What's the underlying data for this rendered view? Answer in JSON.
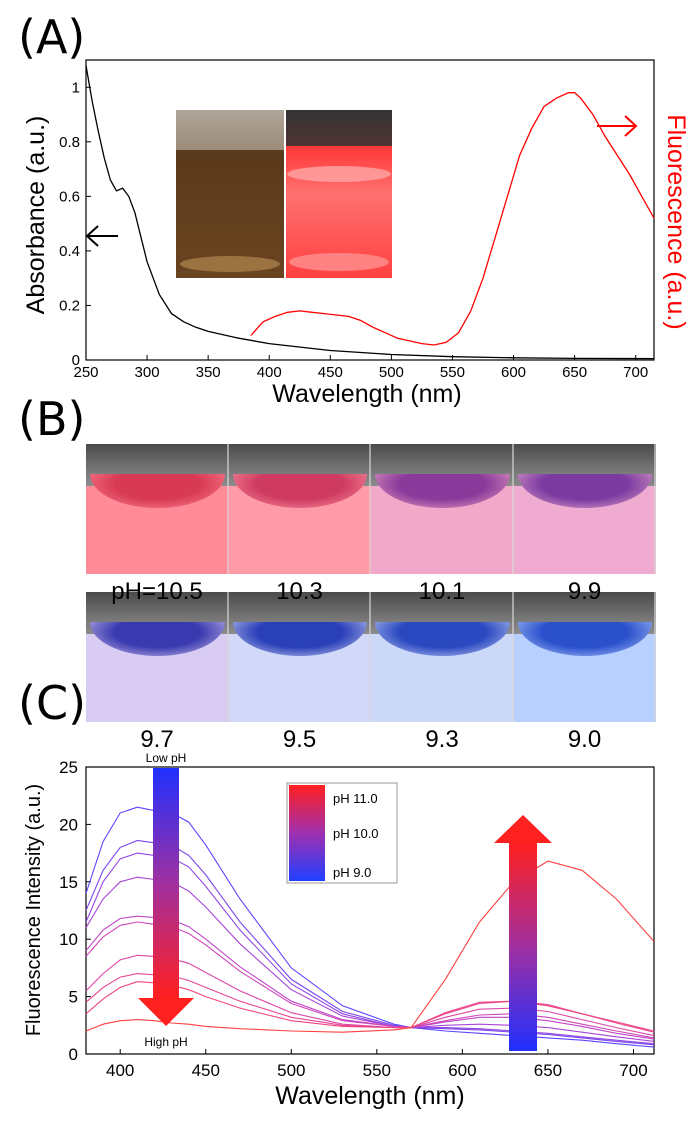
{
  "panel_labels": {
    "a": "(A)",
    "b": "(B)",
    "c": "(C)"
  },
  "colors": {
    "absorbance": "#000000",
    "fluorescence": "#ff0000",
    "high_ph": "#ff2020",
    "low_ph": "#2030ff"
  },
  "chart_data": [
    {
      "id": "A",
      "type": "line",
      "xlabel": "Wavelength (nm)",
      "ylabel": "Absorbance (a.u.)",
      "ylabel_right": "Fluorescence (a.u.)",
      "xlim": [
        250,
        715
      ],
      "ylim": [
        0,
        1.1
      ],
      "xticks": [
        250,
        300,
        350,
        400,
        450,
        500,
        550,
        600,
        650,
        700
      ],
      "yticks": [
        0,
        0.2,
        0.4,
        0.6,
        0.8,
        1
      ],
      "ytick_labels": [
        "0",
        "0.2",
        "0.4",
        "0.6",
        "0.8",
        "1"
      ],
      "series": [
        {
          "name": "Absorbance",
          "axis": "left",
          "x": [
            250,
            255,
            260,
            265,
            270,
            275,
            280,
            285,
            290,
            295,
            300,
            310,
            320,
            330,
            340,
            350,
            375,
            400,
            450,
            500,
            550,
            600,
            650,
            715
          ],
          "y": [
            1.08,
            0.95,
            0.84,
            0.74,
            0.66,
            0.62,
            0.63,
            0.6,
            0.54,
            0.45,
            0.36,
            0.24,
            0.17,
            0.14,
            0.12,
            0.105,
            0.08,
            0.06,
            0.035,
            0.02,
            0.012,
            0.008,
            0.006,
            0.005
          ]
        },
        {
          "name": "Fluorescence",
          "axis": "right",
          "x": [
            385,
            395,
            405,
            415,
            425,
            435,
            445,
            455,
            465,
            475,
            485,
            495,
            505,
            515,
            525,
            535,
            545,
            555,
            565,
            575,
            585,
            595,
            605,
            615,
            625,
            635,
            645,
            650,
            655,
            665,
            675,
            685,
            695,
            705,
            715
          ],
          "y": [
            0.09,
            0.14,
            0.16,
            0.175,
            0.18,
            0.175,
            0.17,
            0.165,
            0.16,
            0.145,
            0.12,
            0.1,
            0.08,
            0.07,
            0.06,
            0.055,
            0.065,
            0.1,
            0.18,
            0.3,
            0.45,
            0.6,
            0.75,
            0.85,
            0.93,
            0.96,
            0.98,
            0.98,
            0.96,
            0.9,
            0.82,
            0.75,
            0.68,
            0.6,
            0.52
          ]
        }
      ],
      "annotations": {
        "left_arrow": "absorbance axis",
        "right_arrow": "fluorescence axis"
      }
    },
    {
      "id": "C",
      "type": "line",
      "xlabel": "Wavelength (nm)",
      "ylabel": "Fluorescence Intensity (a.u.)",
      "xlim": [
        380,
        712
      ],
      "ylim": [
        0,
        25
      ],
      "xticks": [
        400,
        450,
        500,
        550,
        600,
        650,
        700
      ],
      "yticks": [
        0,
        5,
        10,
        15,
        20,
        25
      ],
      "legend": [
        "pH 11.0",
        "pH 10.0",
        "pH 9.0"
      ],
      "legend_position": "top-center",
      "arrow_left_top": "Low pH",
      "arrow_left_bottom": "High pH",
      "x": [
        380,
        390,
        400,
        410,
        420,
        430,
        440,
        450,
        470,
        500,
        530,
        560,
        570,
        590,
        610,
        630,
        650,
        670,
        690,
        712
      ],
      "series": [
        {
          "name": "pH 9.0",
          "color": "#5a46ff",
          "values": [
            14.0,
            18.5,
            21.0,
            21.5,
            21.2,
            21.0,
            20.2,
            18.2,
            13.5,
            7.5,
            4.2,
            2.6,
            2.3,
            2.0,
            1.8,
            1.6,
            1.4,
            1.2,
            0.9,
            0.6
          ]
        },
        {
          "name": "pH 9.3",
          "color": "#7a46ee",
          "values": [
            12.5,
            16.0,
            18.0,
            18.6,
            18.4,
            18.2,
            17.3,
            15.6,
            11.5,
            6.5,
            3.7,
            2.5,
            2.3,
            2.2,
            2.1,
            1.9,
            1.7,
            1.4,
            1.1,
            0.8
          ]
        },
        {
          "name": "pH 9.5",
          "color": "#9146e2",
          "values": [
            11.5,
            15.0,
            17.0,
            17.5,
            17.3,
            17.1,
            16.3,
            14.6,
            10.8,
            6.1,
            3.5,
            2.4,
            2.3,
            2.3,
            2.2,
            2.0,
            1.8,
            1.5,
            1.2,
            0.9
          ]
        },
        {
          "name": "pH 9.7",
          "color": "#a846d6",
          "values": [
            11.0,
            13.5,
            15.0,
            15.4,
            15.2,
            15.0,
            14.2,
            12.8,
            9.6,
            5.6,
            3.3,
            2.4,
            2.3,
            2.5,
            2.6,
            2.5,
            2.3,
            1.9,
            1.5,
            1.1
          ]
        },
        {
          "name": "pH 9.9",
          "color": "#bd46c8",
          "values": [
            9.0,
            10.8,
            11.8,
            12.0,
            11.9,
            11.7,
            11.1,
            10.0,
            7.6,
            4.6,
            3.0,
            2.4,
            2.3,
            2.8,
            3.2,
            3.2,
            2.9,
            2.4,
            1.8,
            1.3
          ]
        },
        {
          "name": "pH 10.0",
          "color": "#cf46b8",
          "values": [
            8.5,
            10.2,
            11.2,
            11.5,
            11.3,
            11.1,
            10.5,
            9.5,
            7.2,
            4.4,
            2.9,
            2.4,
            2.3,
            2.9,
            3.4,
            3.5,
            3.2,
            2.6,
            2.0,
            1.4
          ]
        },
        {
          "name": "pH 10.1",
          "color": "#dd46a6",
          "values": [
            5.5,
            7.0,
            8.2,
            8.6,
            8.5,
            8.3,
            7.9,
            7.1,
            5.5,
            3.6,
            2.6,
            2.3,
            2.3,
            3.2,
            3.9,
            4.0,
            3.7,
            3.0,
            2.3,
            1.6
          ]
        },
        {
          "name": "pH 10.3",
          "color": "#e84694",
          "values": [
            4.5,
            5.8,
            6.7,
            7.0,
            6.9,
            6.8,
            6.4,
            5.8,
            4.6,
            3.2,
            2.5,
            2.3,
            2.3,
            3.5,
            4.4,
            4.6,
            4.3,
            3.5,
            2.7,
            1.9
          ]
        },
        {
          "name": "pH 10.5",
          "color": "#f04682",
          "values": [
            3.5,
            4.8,
            5.8,
            6.3,
            6.2,
            6.0,
            5.6,
            5.0,
            4.0,
            2.9,
            2.4,
            2.3,
            2.3,
            3.6,
            4.5,
            4.6,
            4.2,
            3.5,
            2.8,
            2.0
          ]
        },
        {
          "name": "pH 11.0",
          "color": "#ff4040",
          "values": [
            2.0,
            2.6,
            2.9,
            3.0,
            2.9,
            2.7,
            2.6,
            2.4,
            2.2,
            2.0,
            1.9,
            2.1,
            2.3,
            6.5,
            11.5,
            15.0,
            16.8,
            16.0,
            13.5,
            9.8
          ]
        }
      ]
    }
  ],
  "panel_b": {
    "row1": [
      {
        "label": "pH=10.5",
        "liquid": "#ff8a98",
        "core": "#d83a55"
      },
      {
        "label": "10.3",
        "liquid": "#ff9aa8",
        "core": "#cf3a60"
      },
      {
        "label": "10.1",
        "liquid": "#f2a8c8",
        "core": "#8a3a9a"
      },
      {
        "label": "9.9",
        "liquid": "#efacd0",
        "core": "#7a3aa0"
      }
    ],
    "row2": [
      {
        "label": "9.7",
        "liquid": "#d9ccf2",
        "core": "#3a3ab0"
      },
      {
        "label": "9.5",
        "liquid": "#d2d8f8",
        "core": "#2a40b8"
      },
      {
        "label": "9.3",
        "liquid": "#ccd8f8",
        "core": "#2a48c0"
      },
      {
        "label": "9.0",
        "liquid": "#b8d0ff",
        "core": "#2a50cc"
      }
    ]
  }
}
